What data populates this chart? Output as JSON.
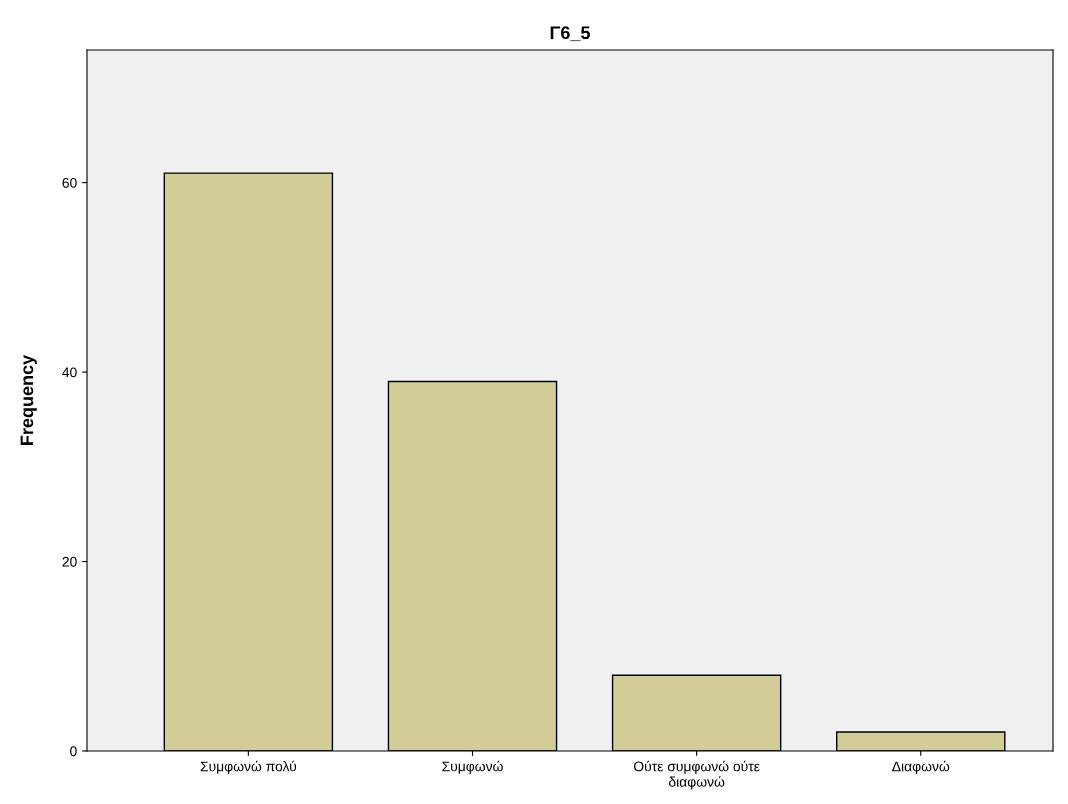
{
  "chart_data": {
    "type": "bar",
    "title": "Γ6_5",
    "ylabel": "Frequency",
    "categories": [
      "Συμφωνώ πολύ",
      "Συμφωνώ",
      "Ούτε συμφωνώ ούτε\nδιαφωνώ",
      "Διαφωνώ"
    ],
    "values": [
      61,
      39,
      8,
      2
    ],
    "color": "#d3ce98",
    "ylim": [
      0,
      74
    ],
    "yticks": [
      0,
      20,
      40,
      60
    ],
    "grid": false
  }
}
